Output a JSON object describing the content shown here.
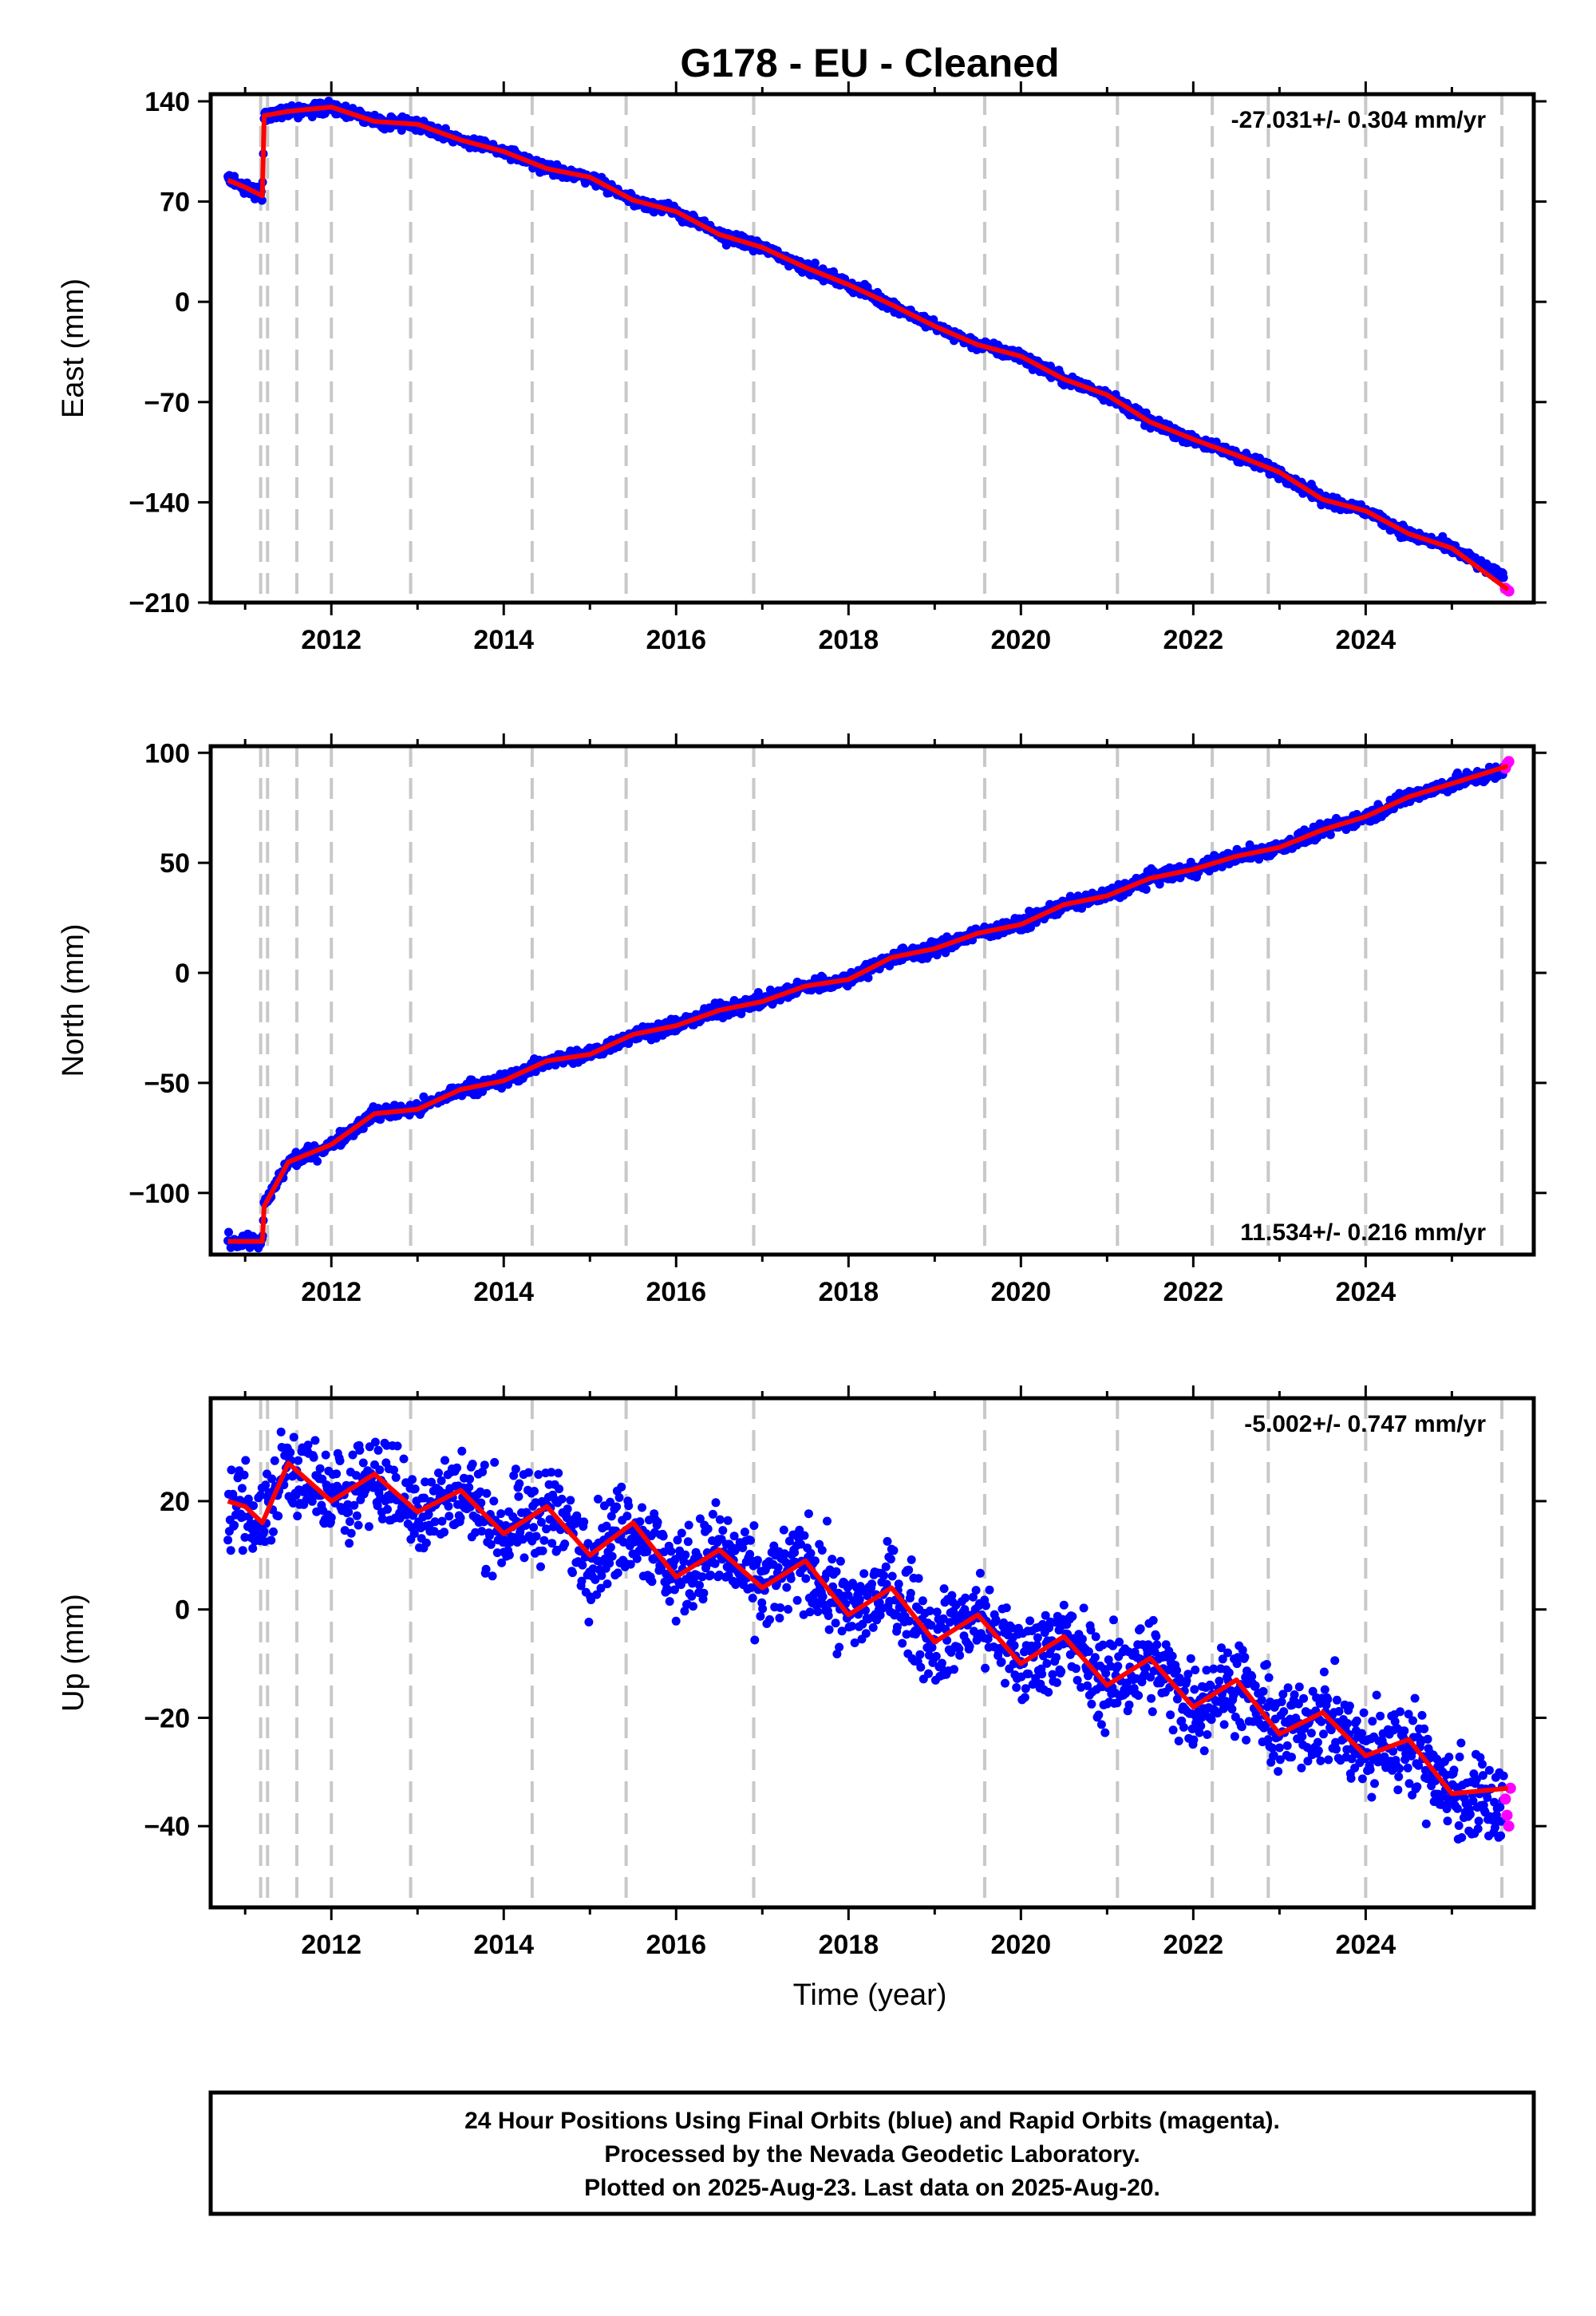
{
  "title": "G178  - EU - Cleaned",
  "colors": {
    "final": "#0000ff",
    "rapid": "#ff00ff",
    "model": "#ff0000",
    "events": "#c8c8c8"
  },
  "x_tick_labels": [
    "2012",
    "2014",
    "2016",
    "2018",
    "2020",
    "2022",
    "2024"
  ],
  "x_label": "Time (year)",
  "footer": {
    "line1": "24 Hour Positions Using Final Orbits (blue) and Rapid Orbits (magenta).",
    "line2": "Processed by the Nevada Geodetic Laboratory.",
    "line3": "Plotted on 2025-Aug-23. Last data on 2025-Aug-20."
  },
  "chart_data": [
    {
      "type": "scatter",
      "component": "East",
      "ylabel": "East (mm)",
      "rate_label": "-27.031+/- 0.304 mm/yr",
      "xlim": [
        2010.6,
        2025.95
      ],
      "ylim": [
        -210,
        145
      ],
      "y_ticks": [
        140,
        70,
        0,
        -70,
        -140,
        -210
      ],
      "y_tick_labels": [
        "140",
        "70",
        "0",
        "−70",
        "−140",
        "−210"
      ],
      "event_lines": [
        2011.18,
        2011.26,
        2011.6,
        2012.0,
        2012.92,
        2014.33,
        2015.42,
        2016.9,
        2019.58,
        2021.12,
        2022.22,
        2022.87,
        2024.0,
        2025.58
      ],
      "series": [
        {
          "name": "Final Orbits",
          "x": [
            2010.8,
            2011.0,
            2011.2,
            2011.22,
            2011.5,
            2012.0,
            2012.5,
            2013.0,
            2013.5,
            2014.0,
            2014.5,
            2015.0,
            2015.5,
            2016.0,
            2016.5,
            2017.0,
            2017.5,
            2018.0,
            2018.5,
            2019.0,
            2019.5,
            2020.0,
            2020.5,
            2021.0,
            2021.5,
            2022.0,
            2022.5,
            2023.0,
            2023.5,
            2024.0,
            2024.5,
            2025.0,
            2025.5
          ],
          "values": [
            85,
            80,
            74,
            130,
            133,
            136,
            126,
            124,
            113,
            105,
            93,
            87,
            71,
            63,
            47,
            38,
            24,
            12,
            -2,
            -17,
            -30,
            -38,
            -54,
            -65,
            -84,
            -96,
            -107,
            -119,
            -138,
            -146,
            -162,
            -172,
            -190
          ]
        },
        {
          "name": "Rapid Orbits",
          "x": [
            2025.62,
            2025.64,
            2025.66
          ],
          "values": [
            -200,
            -201,
            -202
          ]
        },
        {
          "name": "Model",
          "x": [
            2010.8,
            2011.0,
            2011.2,
            2011.22,
            2011.5,
            2012.0,
            2012.5,
            2013.0,
            2013.5,
            2014.0,
            2014.5,
            2015.0,
            2015.5,
            2016.0,
            2016.5,
            2017.0,
            2017.5,
            2018.0,
            2018.5,
            2019.0,
            2019.5,
            2020.0,
            2020.5,
            2021.0,
            2021.5,
            2022.0,
            2022.5,
            2023.0,
            2023.5,
            2024.0,
            2024.5,
            2025.0,
            2025.65
          ],
          "values": [
            85,
            80,
            74,
            130,
            133,
            136,
            126,
            124,
            113,
            105,
            93,
            87,
            71,
            63,
            47,
            38,
            24,
            12,
            -2,
            -17,
            -30,
            -38,
            -54,
            -65,
            -84,
            -96,
            -107,
            -119,
            -138,
            -146,
            -162,
            -172,
            -201
          ]
        }
      ]
    },
    {
      "type": "scatter",
      "component": "North",
      "ylabel": "North (mm)",
      "rate_label": "11.534+/- 0.216 mm/yr",
      "xlim": [
        2010.6,
        2025.95
      ],
      "ylim": [
        -128,
        103
      ],
      "y_ticks": [
        100,
        50,
        0,
        -50,
        -100
      ],
      "y_tick_labels": [
        "100",
        "50",
        "0",
        "−50",
        "−100"
      ],
      "event_lines": [
        2011.18,
        2011.26,
        2011.6,
        2012.0,
        2012.92,
        2014.33,
        2015.42,
        2016.9,
        2019.58,
        2021.12,
        2022.22,
        2022.87,
        2024.0,
        2025.58
      ],
      "series": [
        {
          "name": "Final Orbits",
          "x": [
            2010.8,
            2011.0,
            2011.2,
            2011.22,
            2011.5,
            2012.0,
            2012.5,
            2013.0,
            2013.5,
            2014.0,
            2014.5,
            2015.0,
            2015.5,
            2016.0,
            2016.5,
            2017.0,
            2017.5,
            2018.0,
            2018.5,
            2019.0,
            2019.5,
            2020.0,
            2020.5,
            2021.0,
            2021.5,
            2022.0,
            2022.5,
            2023.0,
            2023.5,
            2024.0,
            2024.5,
            2025.0,
            2025.5
          ],
          "values": [
            -122,
            -122,
            -122,
            -106,
            -86,
            -78,
            -64,
            -62,
            -53,
            -49,
            -40,
            -37,
            -28,
            -24,
            -17,
            -13,
            -6,
            -3,
            7,
            11,
            18,
            22,
            31,
            35,
            43,
            47,
            53,
            57,
            65,
            71,
            80,
            86,
            91
          ]
        },
        {
          "name": "Rapid Orbits",
          "x": [
            2025.62,
            2025.64,
            2025.66
          ],
          "values": [
            93,
            95,
            96
          ]
        },
        {
          "name": "Model",
          "x": [
            2010.8,
            2011.0,
            2011.2,
            2011.22,
            2011.5,
            2012.0,
            2012.5,
            2013.0,
            2013.5,
            2014.0,
            2014.5,
            2015.0,
            2015.5,
            2016.0,
            2016.5,
            2017.0,
            2017.5,
            2018.0,
            2018.5,
            2019.0,
            2019.5,
            2020.0,
            2020.5,
            2021.0,
            2021.5,
            2022.0,
            2022.5,
            2023.0,
            2023.5,
            2024.0,
            2024.5,
            2025.0,
            2025.65
          ],
          "values": [
            -122,
            -122,
            -122,
            -106,
            -86,
            -78,
            -64,
            -62,
            -53,
            -49,
            -40,
            -37,
            -28,
            -24,
            -17,
            -13,
            -6,
            -3,
            7,
            11,
            18,
            22,
            31,
            35,
            43,
            47,
            53,
            57,
            65,
            71,
            80,
            86,
            94
          ]
        }
      ]
    },
    {
      "type": "scatter",
      "component": "Up",
      "ylabel": "Up (mm)",
      "rate_label": "-5.002+/- 0.747 mm/yr",
      "xlim": [
        2010.6,
        2025.95
      ],
      "ylim": [
        -55,
        39
      ],
      "y_ticks": [
        20,
        0,
        -20,
        -40
      ],
      "y_tick_labels": [
        "20",
        "0",
        "−20",
        "−40"
      ],
      "event_lines": [
        2011.18,
        2011.26,
        2011.6,
        2012.0,
        2012.92,
        2014.33,
        2015.42,
        2016.9,
        2019.58,
        2021.12,
        2022.22,
        2022.87,
        2024.0,
        2025.58
      ],
      "series": [
        {
          "name": "Final Orbits",
          "x": [
            2010.8,
            2011.0,
            2011.2,
            2011.5,
            2012.0,
            2012.5,
            2013.0,
            2013.5,
            2014.0,
            2014.5,
            2015.0,
            2015.5,
            2016.0,
            2016.5,
            2017.0,
            2017.5,
            2018.0,
            2018.5,
            2019.0,
            2019.5,
            2020.0,
            2020.5,
            2021.0,
            2021.5,
            2022.0,
            2022.5,
            2023.0,
            2023.5,
            2024.0,
            2024.5,
            2025.0,
            2025.5
          ],
          "values": [
            20,
            19,
            16,
            27,
            20,
            25,
            18,
            22,
            14,
            19,
            10,
            16,
            6,
            11,
            4,
            9,
            -1,
            4,
            -6,
            -1,
            -10,
            -5,
            -14,
            -9,
            -18,
            -13,
            -23,
            -19,
            -27,
            -24,
            -34,
            -36
          ]
        },
        {
          "name": "Rapid Orbits",
          "x": [
            2025.62,
            2025.64,
            2025.66,
            2025.68
          ],
          "values": [
            -35,
            -38,
            -40,
            -33
          ]
        },
        {
          "name": "Model",
          "x": [
            2010.8,
            2011.0,
            2011.2,
            2011.5,
            2012.0,
            2012.5,
            2013.0,
            2013.5,
            2014.0,
            2014.5,
            2015.0,
            2015.5,
            2016.0,
            2016.5,
            2017.0,
            2017.5,
            2018.0,
            2018.5,
            2019.0,
            2019.5,
            2020.0,
            2020.5,
            2021.0,
            2021.5,
            2022.0,
            2022.5,
            2023.0,
            2023.5,
            2024.0,
            2024.5,
            2025.0,
            2025.65
          ],
          "values": [
            20,
            19,
            16,
            27,
            20,
            25,
            18,
            22,
            14,
            19,
            10,
            16,
            6,
            11,
            4,
            9,
            -1,
            4,
            -6,
            -1,
            -10,
            -5,
            -14,
            -9,
            -18,
            -13,
            -23,
            -19,
            -27,
            -24,
            -34,
            -33
          ]
        }
      ]
    }
  ]
}
